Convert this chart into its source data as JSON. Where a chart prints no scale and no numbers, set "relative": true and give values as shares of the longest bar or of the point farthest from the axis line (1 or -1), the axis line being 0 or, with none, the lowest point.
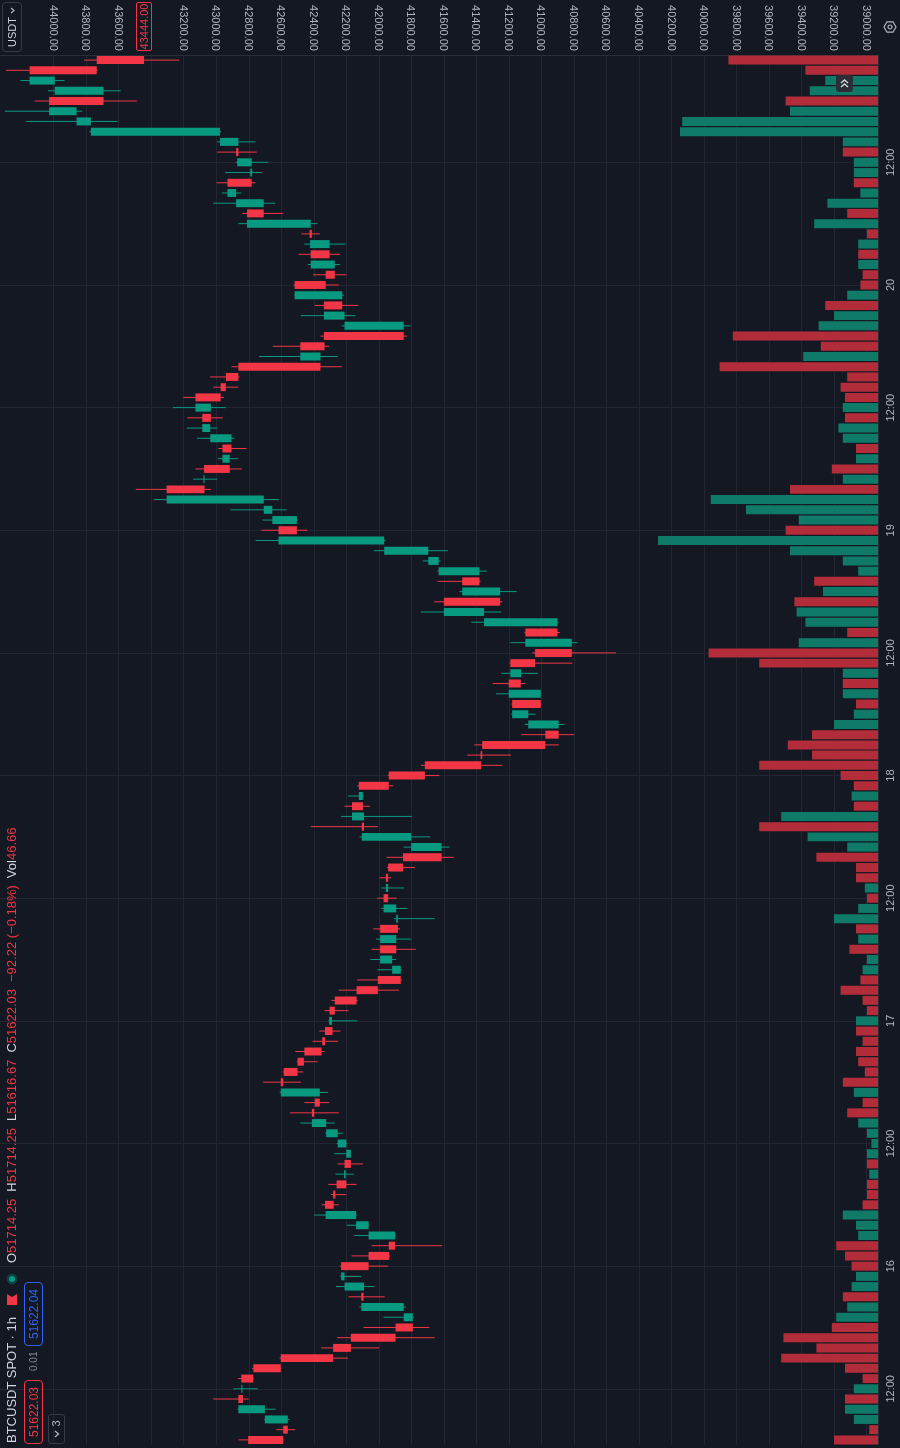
{
  "chart_data": [
    {
      "type": "candlestick",
      "orientation": "horizontal",
      "title": "BTCUSDT SPOT · 1h",
      "categories": [
        null,
        null,
        null,
        null,
        null,
        null,
        null,
        null,
        null,
        null,
        "12:00",
        null,
        null,
        null,
        null,
        null,
        null,
        null,
        null,
        null,
        null,
        null,
        "20",
        null,
        null,
        null,
        null,
        null,
        null,
        null,
        null,
        null,
        null,
        null,
        "12:00",
        null,
        null,
        null,
        null,
        null,
        null,
        null,
        null,
        null,
        null,
        null,
        "19",
        null,
        null,
        null,
        null,
        null,
        null,
        null,
        null,
        null,
        null,
        null,
        "12:00",
        null,
        null,
        null,
        null,
        null,
        null,
        null,
        null,
        null,
        null,
        null,
        "18",
        null,
        null,
        null,
        null,
        null,
        null,
        null,
        null,
        null,
        null,
        null,
        "12:00",
        null,
        null,
        null,
        null,
        null,
        null,
        null,
        null,
        null,
        null,
        null,
        "17",
        null,
        null,
        null,
        null,
        null,
        null,
        null,
        null,
        null,
        null,
        null,
        "12:00",
        null,
        null,
        null,
        null,
        null,
        null,
        null,
        null,
        null,
        null,
        null,
        "16",
        null,
        null,
        null,
        null,
        null,
        null,
        null,
        null,
        null,
        null,
        null,
        "12:00",
        null,
        null,
        null,
        null,
        null
      ],
      "ohlc": [
        [
          43735,
          43813,
          43227,
          43444
        ],
        [
          44148,
          44293,
          43730,
          43735
        ],
        [
          43993,
          44205,
          43933,
          44148
        ],
        [
          43693,
          44035,
          43587,
          43993
        ],
        [
          44028,
          44116,
          43488,
          43693
        ],
        [
          43859,
          44300,
          43824,
          44028
        ],
        [
          43771,
          44169,
          43608,
          43859
        ],
        [
          42977,
          43781,
          42970,
          43771
        ],
        [
          42864,
          42994,
          42758,
          42977
        ],
        [
          42878,
          42994,
          42751,
          42864
        ],
        [
          42782,
          42880,
          42680,
          42871
        ],
        [
          42779,
          42945,
          42719,
          42790
        ],
        [
          42931,
          42998,
          42758,
          42782
        ],
        [
          42878,
          42966,
          42846,
          42931
        ],
        [
          42708,
          43019,
          42638,
          42878
        ],
        [
          42811,
          42839,
          42588,
          42708
        ],
        [
          42419,
          42864,
          42377,
          42811
        ],
        [
          42426,
          42476,
          42363,
          42412
        ],
        [
          42303,
          42458,
          42204,
          42423
        ],
        [
          42419,
          42493,
          42239,
          42303
        ],
        [
          42271,
          42437,
          42239,
          42419
        ],
        [
          42327,
          42405,
          42200,
          42271
        ],
        [
          42518,
          42525,
          42246,
          42327
        ],
        [
          42225,
          42520,
          42214,
          42518
        ],
        [
          42338,
          42394,
          42126,
          42225
        ],
        [
          42211,
          42479,
          42144,
          42338
        ],
        [
          41847,
          42228,
          41805,
          42211
        ],
        [
          42338,
          42359,
          41826,
          41847
        ],
        [
          42483,
          42652,
          42306,
          42334
        ],
        [
          42359,
          42737,
          42253,
          42483
        ],
        [
          42864,
          42906,
          42228,
          42359
        ],
        [
          42941,
          43037,
          42857,
          42864
        ],
        [
          42973,
          43019,
          42864,
          42941
        ],
        [
          43128,
          43202,
          42952,
          42973
        ],
        [
          43033,
          43266,
          42941,
          43128
        ],
        [
          43086,
          43178,
          42959,
          43033
        ],
        [
          43037,
          43181,
          42994,
          43086
        ],
        [
          42906,
          43118,
          42888,
          43037
        ],
        [
          42962,
          42987,
          42814,
          42906
        ],
        [
          42917,
          42991,
          42867,
          42962
        ],
        [
          43075,
          43128,
          42843,
          42917
        ],
        [
          43072,
          43142,
          42994,
          43079
        ],
        [
          43305,
          43495,
          43033,
          43072
        ],
        [
          42708,
          43382,
          42613,
          43305
        ],
        [
          42655,
          42913,
          42567,
          42708
        ],
        [
          42504,
          42715,
          42500,
          42655
        ],
        [
          42617,
          42722,
          42440,
          42504
        ],
        [
          41967,
          42758,
          41960,
          42617
        ],
        [
          41696,
          42031,
          41576,
          41967
        ],
        [
          41632,
          41731,
          41621,
          41696
        ],
        [
          41381,
          41640,
          41336,
          41632
        ],
        [
          41487,
          41639,
          41375,
          41381
        ],
        [
          41254,
          41505,
          41152,
          41487
        ],
        [
          41600,
          41660,
          41240,
          41254
        ],
        [
          41353,
          41741,
          41247,
          41600
        ],
        [
          40901,
          41431,
          40895,
          41353
        ],
        [
          41099,
          41105,
          40887,
          40901
        ],
        [
          40813,
          41191,
          40778,
          41099
        ],
        [
          41039,
          41057,
          40542,
          40813
        ],
        [
          41191,
          41195,
          40810,
          41039
        ],
        [
          41124,
          41247,
          41022,
          41191
        ],
        [
          41201,
          41300,
          41099,
          41127
        ],
        [
          41004,
          41279,
          41000,
          41201
        ],
        [
          41180,
          41185,
          41000,
          41004
        ],
        [
          41081,
          41185,
          41036,
          41180
        ],
        [
          40894,
          41103,
          40859,
          41081
        ],
        [
          40976,
          41124,
          40799,
          40894
        ],
        [
          41364,
          41413,
          40894,
          40976
        ],
        [
          41374,
          41456,
          41187,
          41364
        ],
        [
          41717,
          41741,
          41240,
          41371
        ],
        [
          41939,
          41945,
          41628,
          41717
        ],
        [
          42123,
          42133,
          41911,
          41939
        ],
        [
          42098,
          42190,
          42095,
          42123
        ],
        [
          42165,
          42211,
          42055,
          42098
        ],
        [
          42091,
          42232,
          41798,
          42165
        ],
        [
          42105,
          42419,
          42006,
          42091
        ],
        [
          41801,
          42119,
          41685,
          42105
        ],
        [
          41614,
          41847,
          41565,
          41801
        ],
        [
          41851,
          41953,
          41540,
          41614
        ],
        [
          41943,
          41950,
          41777,
          41851
        ],
        [
          41957,
          41996,
          41925,
          41943
        ],
        [
          41943,
          41985,
          41844,
          41957
        ],
        [
          41971,
          42010,
          41890,
          41943
        ],
        [
          41893,
          41985,
          41823,
          41971
        ],
        [
          41883,
          41907,
          41657,
          41893
        ],
        [
          41992,
          42034,
          41869,
          41883
        ],
        [
          41893,
          42017,
          41801,
          41992
        ],
        [
          41992,
          42045,
          41773,
          41893
        ],
        [
          41918,
          42052,
          41893,
          41992
        ],
        [
          41865,
          42010,
          41860,
          41918
        ],
        [
          42006,
          42133,
          41858,
          41865
        ],
        [
          42137,
          42246,
          41876,
          42006
        ],
        [
          42271,
          42292,
          42130,
          42137
        ],
        [
          42303,
          42334,
          42186,
          42271
        ],
        [
          42288,
          42310,
          42133,
          42306
        ],
        [
          42331,
          42366,
          42236,
          42285
        ],
        [
          42348,
          42408,
          42250,
          42331
        ],
        [
          42458,
          42514,
          42334,
          42352
        ],
        [
          42500,
          42505,
          42377,
          42461
        ],
        [
          42585,
          42590,
          42465,
          42500
        ],
        [
          42603,
          42712,
          42479,
          42588
        ],
        [
          42363,
          42610,
          42313,
          42603
        ],
        [
          42394,
          42458,
          42306,
          42363
        ],
        [
          42412,
          42546,
          42246,
          42398
        ],
        [
          42324,
          42483,
          42271,
          42412
        ],
        [
          42253,
          42330,
          42221,
          42324
        ],
        [
          42200,
          42260,
          42197,
          42253
        ],
        [
          42172,
          42274,
          42170,
          42200
        ],
        [
          42211,
          42253,
          42098,
          42172
        ],
        [
          42204,
          42267,
          42154,
          42214
        ],
        [
          42260,
          42310,
          42137,
          42200
        ],
        [
          42281,
          42295,
          42200,
          42267
        ],
        [
          42331,
          42352,
          42246,
          42278
        ],
        [
          42140,
          42398,
          42135,
          42327
        ],
        [
          42063,
          42197,
          42060,
          42140
        ],
        [
          41900,
          42151,
          41895,
          42063
        ],
        [
          41939,
          42045,
          41611,
          41900
        ],
        [
          42063,
          42168,
          41930,
          41936
        ],
        [
          42232,
          42240,
          41943,
          42063
        ],
        [
          42211,
          42240,
          42108,
          42232
        ],
        [
          42091,
          42264,
          42027,
          42211
        ],
        [
          42108,
          42186,
          41964,
          42094
        ],
        [
          41847,
          42119,
          41833,
          42108
        ],
        [
          41791,
          41971,
          41785,
          41847
        ],
        [
          41897,
          42094,
          41689,
          41791
        ],
        [
          42172,
          42257,
          41657,
          41897
        ],
        [
          42281,
          42355,
          41999,
          42172
        ],
        [
          42603,
          42610,
          42190,
          42281
        ],
        [
          42772,
          42780,
          42600,
          42603
        ],
        [
          42846,
          42867,
          42770,
          42772
        ],
        [
          42839,
          42895,
          42744,
          42846
        ],
        [
          42864,
          43019,
          42800,
          42836
        ],
        [
          42701,
          42870,
          42634,
          42864
        ],
        [
          42560,
          42705,
          42550,
          42701
        ],
        [
          42588,
          42631,
          42514,
          42560
        ],
        [
          42804,
          42864,
          42585,
          42588
        ]
      ],
      "colors": [
        "#f23645",
        "#f23645",
        "#089981",
        "#089981",
        "#f23645",
        "#089981",
        "#089981",
        "#089981",
        "#089981",
        "#f23645",
        "#089981",
        "#089981",
        "#f23645",
        "#089981",
        "#089981",
        "#f23645",
        "#089981",
        "#f23645",
        "#089981",
        "#f23645",
        "#089981",
        "#f23645",
        "#f23645",
        "#089981",
        "#f23645",
        "#089981",
        "#089981",
        "#f23645",
        "#f23645",
        "#089981",
        "#f23645",
        "#f23645",
        "#f23645",
        "#f23645",
        "#089981",
        "#f23645",
        "#089981",
        "#089981",
        "#f23645",
        "#089981",
        "#f23645",
        "#089981",
        "#f23645",
        "#089981",
        "#089981",
        "#089981",
        "#f23645",
        "#089981",
        "#089981",
        "#089981",
        "#089981",
        "#f23645",
        "#089981",
        "#f23645",
        "#089981",
        "#089981",
        "#f23645",
        "#089981",
        "#f23645",
        "#f23645",
        "#089981",
        "#f23645",
        "#089981",
        "#f23645",
        "#089981",
        "#089981",
        "#f23645",
        "#f23645",
        "#f23645",
        "#f23645",
        "#f23645",
        "#f23645",
        "#089981",
        "#f23645",
        "#089981",
        "#f23645",
        "#089981",
        "#089981",
        "#f23645",
        "#f23645",
        "#f23645",
        "#089981",
        "#f23645",
        "#089981",
        "#089981",
        "#f23645",
        "#089981",
        "#f23645",
        "#089981",
        "#089981",
        "#f23645",
        "#f23645",
        "#f23645",
        "#f23645",
        "#089981",
        "#f23645",
        "#f23645",
        "#f23645",
        "#f23645",
        "#f23645",
        "#f23645",
        "#089981",
        "#f23645",
        "#f23645",
        "#089981",
        "#089981",
        "#089981",
        "#089981",
        "#f23645",
        "#089981",
        "#f23645",
        "#f23645",
        "#f23645",
        "#089981",
        "#089981",
        "#089981",
        "#f23645",
        "#f23645",
        "#f23645",
        "#089981",
        "#089981",
        "#f23645",
        "#089981",
        "#089981",
        "#f23645",
        "#f23645",
        "#f23645",
        "#f23645",
        "#f23645",
        "#f23645",
        "#089981",
        "#f23645",
        "#089981",
        "#089981",
        "#f23645",
        "#f23645"
      ],
      "xlim": [
        44330,
        38930
      ],
      "xticks": [
        {
          "value": 44000,
          "label": "44000.00"
        },
        {
          "value": 43800,
          "label": "43800.00"
        },
        {
          "value": 43600,
          "label": "43600.00"
        },
        {
          "value": 43400,
          "label": null
        },
        {
          "value": 43200,
          "label": "43200.00"
        },
        {
          "value": 43000,
          "label": "43000.00"
        },
        {
          "value": 42800,
          "label": "42800.00"
        },
        {
          "value": 42600,
          "label": "42600.00"
        },
        {
          "value": 42400,
          "label": "42400.00"
        },
        {
          "value": 42200,
          "label": "42200.00"
        },
        {
          "value": 42000,
          "label": "42000.00"
        },
        {
          "value": 41800,
          "label": "41800.00"
        },
        {
          "value": 41600,
          "label": "41600.00"
        },
        {
          "value": 41400,
          "label": "41400.00"
        },
        {
          "value": 41200,
          "label": "41200.00"
        },
        {
          "value": 41000,
          "label": "41000.00"
        },
        {
          "value": 40800,
          "label": "40800.00"
        },
        {
          "value": 40600,
          "label": "40600.00"
        },
        {
          "value": 40400,
          "label": "40400.00"
        },
        {
          "value": 40200,
          "label": "40200.00"
        },
        {
          "value": 40000,
          "label": "40000.00"
        },
        {
          "value": 39800,
          "label": "39800.00"
        },
        {
          "value": 39600,
          "label": "39600.00"
        },
        {
          "value": 39400,
          "label": "39400.00"
        },
        {
          "value": 39200,
          "label": "39200.00"
        },
        {
          "value": 39000,
          "label": "39000.00"
        }
      ],
      "grid": true,
      "annotations": [
        "O51714.25",
        "H51714.25",
        "L51616.67",
        "C51622.03",
        "−92.22 (−0.18%)",
        "Vol46.66",
        "51622.03",
        "0.01",
        "51622.04",
        "3",
        "43444.00",
        "USDT"
      ]
    },
    {
      "type": "bar",
      "orientation": "horizontal",
      "relative": true,
      "categories": [
        null,
        null,
        null,
        null,
        null,
        null,
        null,
        null,
        null,
        null,
        null,
        null,
        null,
        null,
        null,
        null,
        null,
        null,
        null,
        null,
        null,
        null,
        null,
        null,
        null,
        null,
        null,
        null,
        null,
        null,
        null,
        null,
        null,
        null,
        null,
        null,
        null,
        null,
        null,
        null,
        null,
        null,
        null,
        null,
        null,
        null,
        null,
        null,
        null,
        null,
        null,
        null,
        null,
        null,
        null,
        null,
        null,
        null,
        null,
        null,
        null,
        null,
        null,
        null,
        null,
        null,
        null,
        null,
        null,
        null,
        null,
        null,
        null,
        null,
        null,
        null,
        null,
        null,
        null,
        null,
        null,
        null,
        null,
        null,
        null,
        null,
        null,
        null,
        null,
        null,
        null,
        null,
        null,
        null,
        null,
        null,
        null,
        null,
        null,
        null,
        null,
        null,
        null,
        null,
        null,
        null,
        null,
        null,
        null,
        null,
        null,
        null,
        null,
        null,
        null,
        null,
        null,
        null,
        null,
        null,
        null,
        null,
        null,
        null,
        null,
        null,
        null,
        null,
        null,
        null,
        null,
        null,
        null,
        null,
        null,
        null
      ],
      "values": [
        0.68,
        0.33,
        0.24,
        0.31,
        0.42,
        0.4,
        0.89,
        0.9,
        0.16,
        0.16,
        0.11,
        0.11,
        0.11,
        0.08,
        0.23,
        0.14,
        0.29,
        0.05,
        0.09,
        0.09,
        0.09,
        0.07,
        0.08,
        0.14,
        0.24,
        0.2,
        0.27,
        0.66,
        0.26,
        0.34,
        0.72,
        0.14,
        0.17,
        0.15,
        0.16,
        0.15,
        0.18,
        0.16,
        0.1,
        0.1,
        0.21,
        0.16,
        0.4,
        0.76,
        0.6,
        0.36,
        0.42,
        1,
        0.4,
        0.16,
        0.09,
        0.29,
        0.25,
        0.38,
        0.37,
        0.33,
        0.14,
        0.36,
        0.77,
        0.54,
        0.16,
        0.16,
        0.16,
        0.1,
        0.11,
        0.2,
        0.3,
        0.41,
        0.3,
        0.54,
        0.17,
        0.11,
        0.12,
        0.11,
        0.44,
        0.54,
        0.32,
        0.14,
        0.28,
        0.1,
        0.1,
        0.06,
        0.05,
        0.09,
        0.2,
        0.1,
        0.09,
        0.13,
        0.05,
        0.07,
        0.08,
        0.17,
        0.07,
        0.05,
        0.1,
        0.1,
        0.07,
        0.1,
        0.09,
        0.06,
        0.16,
        0.11,
        0.07,
        0.14,
        0.09,
        0.05,
        0.03,
        0.05,
        0.05,
        0.04,
        0.05,
        0.05,
        0.07,
        0.16,
        0.1,
        0.09,
        0.19,
        0.15,
        0.12,
        0.1,
        0.12,
        0.16,
        0.14,
        0.19,
        0.21,
        0.43,
        0.28,
        0.44,
        0.15,
        0.07,
        0.11,
        0.15,
        0.15,
        0.11,
        0.04,
        0.2
      ],
      "colors": [
        "#b22d39",
        "#b22d39",
        "#0f7a68",
        "#0f7a68",
        "#b22d39",
        "#0f7a68",
        "#0f7a68",
        "#0f7a68",
        "#0f7a68",
        "#b22d39",
        "#0f7a68",
        "#0f7a68",
        "#b22d39",
        "#0f7a68",
        "#0f7a68",
        "#b22d39",
        "#0f7a68",
        "#b22d39",
        "#0f7a68",
        "#b22d39",
        "#0f7a68",
        "#b22d39",
        "#b22d39",
        "#0f7a68",
        "#b22d39",
        "#0f7a68",
        "#0f7a68",
        "#b22d39",
        "#b22d39",
        "#0f7a68",
        "#b22d39",
        "#b22d39",
        "#b22d39",
        "#b22d39",
        "#0f7a68",
        "#b22d39",
        "#0f7a68",
        "#0f7a68",
        "#b22d39",
        "#0f7a68",
        "#b22d39",
        "#0f7a68",
        "#b22d39",
        "#0f7a68",
        "#0f7a68",
        "#0f7a68",
        "#b22d39",
        "#0f7a68",
        "#0f7a68",
        "#0f7a68",
        "#0f7a68",
        "#b22d39",
        "#0f7a68",
        "#b22d39",
        "#0f7a68",
        "#0f7a68",
        "#b22d39",
        "#0f7a68",
        "#b22d39",
        "#b22d39",
        "#0f7a68",
        "#b22d39",
        "#0f7a68",
        "#b22d39",
        "#0f7a68",
        "#0f7a68",
        "#b22d39",
        "#b22d39",
        "#b22d39",
        "#b22d39",
        "#b22d39",
        "#b22d39",
        "#0f7a68",
        "#b22d39",
        "#0f7a68",
        "#b22d39",
        "#0f7a68",
        "#0f7a68",
        "#b22d39",
        "#b22d39",
        "#b22d39",
        "#0f7a68",
        "#b22d39",
        "#0f7a68",
        "#0f7a68",
        "#b22d39",
        "#0f7a68",
        "#b22d39",
        "#0f7a68",
        "#0f7a68",
        "#b22d39",
        "#b22d39",
        "#b22d39",
        "#b22d39",
        "#0f7a68",
        "#b22d39",
        "#b22d39",
        "#b22d39",
        "#b22d39",
        "#b22d39",
        "#b22d39",
        "#0f7a68",
        "#b22d39",
        "#b22d39",
        "#0f7a68",
        "#0f7a68",
        "#0f7a68",
        "#0f7a68",
        "#b22d39",
        "#0f7a68",
        "#b22d39",
        "#b22d39",
        "#b22d39",
        "#0f7a68",
        "#0f7a68",
        "#0f7a68",
        "#b22d39",
        "#b22d39",
        "#b22d39",
        "#0f7a68",
        "#0f7a68",
        "#b22d39",
        "#0f7a68",
        "#0f7a68",
        "#b22d39",
        "#b22d39",
        "#b22d39",
        "#b22d39",
        "#b22d39",
        "#b22d39",
        "#0f7a68",
        "#b22d39",
        "#0f7a68",
        "#0f7a68",
        "#b22d39",
        "#b22d39"
      ]
    }
  ]
}
